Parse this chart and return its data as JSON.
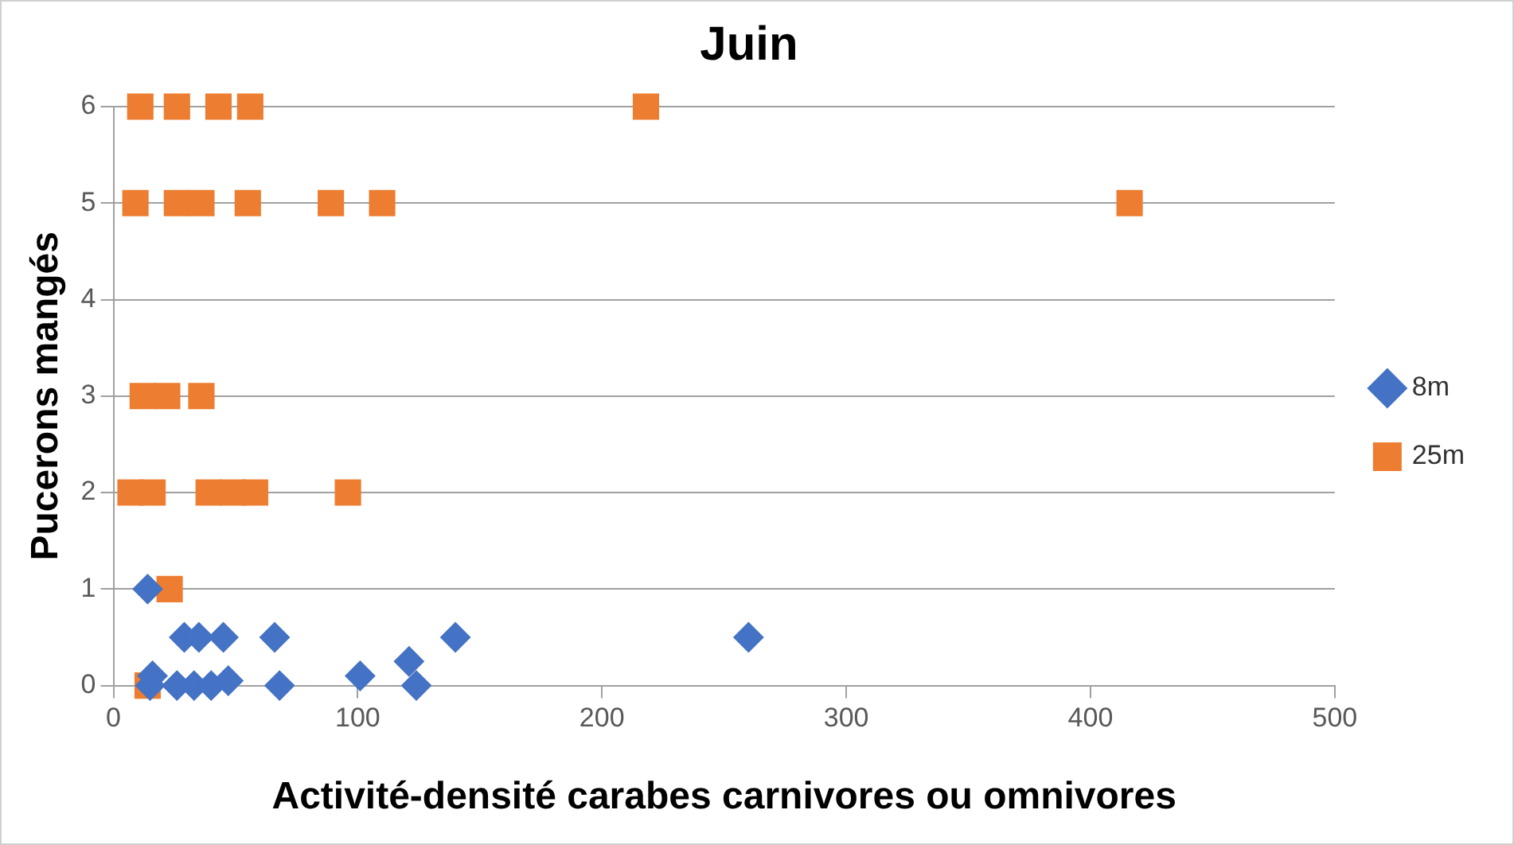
{
  "chart_data": {
    "type": "scatter",
    "title": "Juin",
    "xlabel": "Activité-densité carabes carnivores ou omnivores",
    "ylabel": "Pucerons mangés",
    "xlim": [
      0,
      500
    ],
    "xticks": [
      0,
      100,
      200,
      300,
      400,
      500
    ],
    "ylim": [
      0,
      6
    ],
    "yticks": [
      0,
      1,
      2,
      3,
      4,
      5,
      6
    ],
    "grid": "y",
    "legend": "right",
    "series": [
      {
        "name": "8m",
        "color": "#4472c4",
        "marker": "diamond",
        "x": [
          14,
          29,
          35,
          45,
          66,
          140,
          260,
          121,
          15,
          16,
          26,
          33,
          40,
          47,
          68,
          101,
          124
        ],
        "values": [
          1,
          0.5,
          0.5,
          0.5,
          0.5,
          0.5,
          0.5,
          0.25,
          0,
          0.1,
          0,
          0,
          0,
          0.05,
          0,
          0.1,
          0
        ]
      },
      {
        "name": "25m",
        "color": "#ed7d31",
        "marker": "square",
        "x": [
          11,
          26,
          43,
          56,
          218,
          9,
          26,
          36,
          55,
          89,
          110,
          416,
          12,
          22,
          36,
          7,
          16,
          39,
          49,
          58,
          96,
          23,
          14
        ],
        "values": [
          6,
          6,
          6,
          6,
          6,
          5,
          5,
          5,
          5,
          5,
          5,
          5,
          3,
          3,
          3,
          2,
          2,
          2,
          2,
          2,
          2,
          1,
          0
        ]
      }
    ]
  }
}
